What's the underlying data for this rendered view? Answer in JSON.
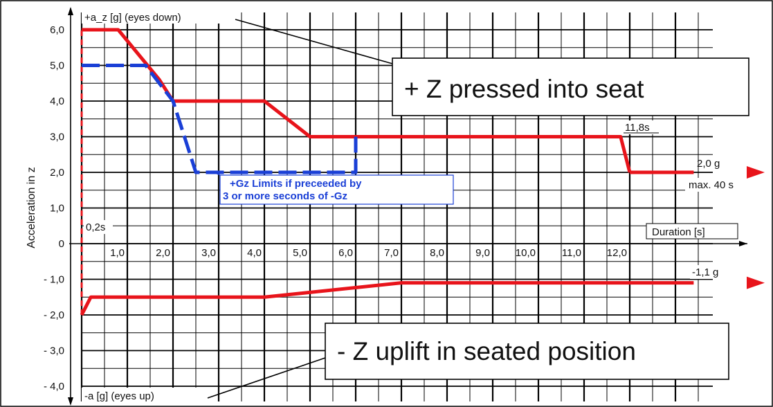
{
  "chart_data": {
    "type": "line",
    "title": "",
    "xlabel": "Duration [s]",
    "ylabel": "Acceleration in z",
    "xlim": [
      0,
      13.4
    ],
    "ylim": [
      -4.4,
      6.4
    ],
    "x_tick_labels": [
      "1,0",
      "2,0",
      "3,0",
      "4,0",
      "5,0",
      "6,0",
      "7,0",
      "8,0",
      "9,0",
      "10,0",
      "11,0",
      "12,0"
    ],
    "y_tick_labels": [
      "6,0",
      "5,0",
      "4,0",
      "3,0",
      "2,0",
      "1,0",
      "0",
      "- 1,0",
      "- 2,0",
      "- 3,0",
      "- 4,0"
    ],
    "y_axis_top_label": "+a_z [g] (eyes down)",
    "y_axis_bottom_label": "-a  [g] (eyes up)",
    "grid": true,
    "series": [
      {
        "color": "#e8141b",
        "style": "solid",
        "x": [
          0,
          0.8,
          1.7,
          2.0,
          4.0,
          5.0,
          11.8,
          12.0
        ],
        "y": [
          6.0,
          6.0,
          4.6,
          4.0,
          4.0,
          3.0,
          3.0,
          2.0
        ]
      },
      {
        "color": "#1a3fd6",
        "style": "dashed",
        "x": [
          0,
          1.4,
          2.0,
          2.5,
          6.0,
          6.0
        ],
        "y": [
          5.0,
          5.0,
          4.0,
          2.0,
          2.0,
          3.0
        ]
      },
      {
        "color": "#e8141b",
        "style": "solid",
        "x": [
          0,
          0.2,
          4.0,
          7.0,
          13.4
        ],
        "y": [
          -2.0,
          -1.5,
          -1.5,
          -1.1,
          -1.1
        ]
      },
      {
        "color": "#e8141b",
        "style": "solid",
        "x": [
          12.0,
          13.4
        ],
        "y": [
          2.0,
          2.0
        ]
      },
      {
        "color": "#e8141b",
        "style": "dashed",
        "x": [
          0,
          0
        ],
        "y": [
          -2.0,
          6.0
        ]
      }
    ],
    "annotations": [
      {
        "text": "0,2s"
      },
      {
        "text": "11,8s"
      },
      {
        "text": "2,0 g"
      },
      {
        "text": "max. 40 s"
      },
      {
        "text": "-1,1 g"
      },
      {
        "text": "+Gz Limits if preceeded by"
      },
      {
        "text": "3 or more seconds of -Gz"
      }
    ]
  },
  "callouts": {
    "top": "+ Z pressed into seat",
    "bottom": "- Z uplift in seated position"
  },
  "colors": {
    "red": "#e8141b",
    "blue": "#1a3fd6",
    "grid": "#000000"
  }
}
